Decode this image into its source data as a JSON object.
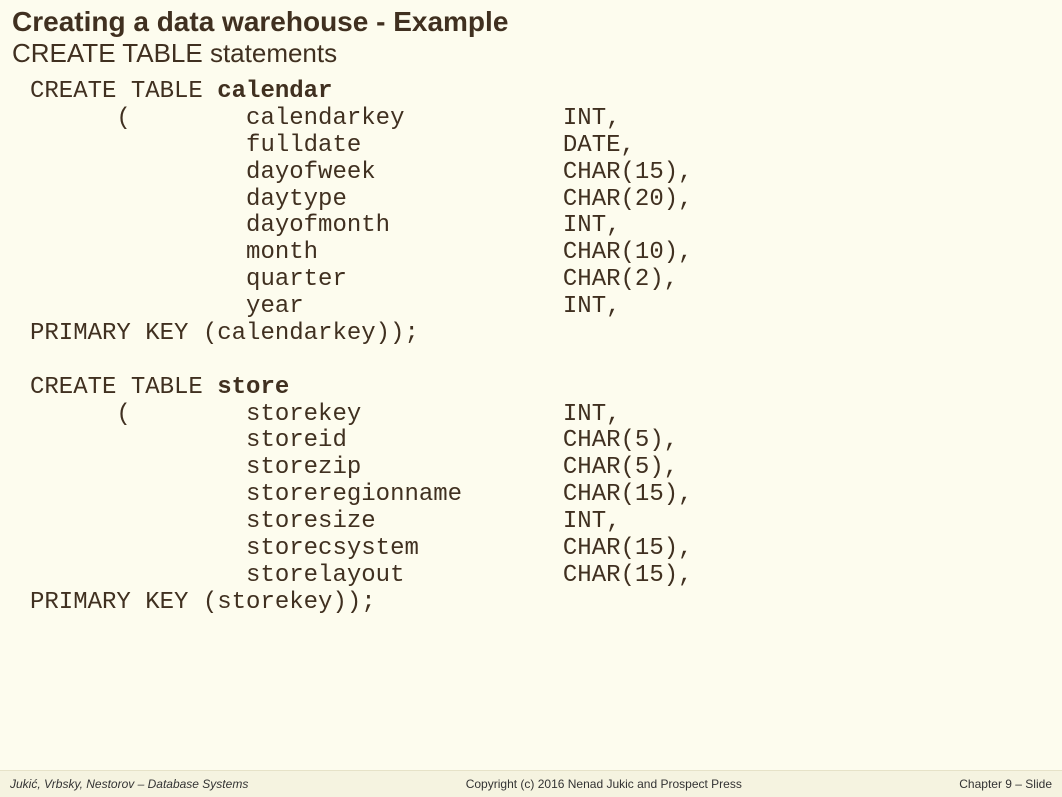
{
  "header": {
    "title": "Creating a data warehouse - Example",
    "subtitle": "CREATE TABLE statements"
  },
  "code": {
    "keyword_create_table": "CREATE TABLE",
    "table1": {
      "name": "calendar",
      "columns": [
        {
          "name": "calendarkey",
          "type": "INT,"
        },
        {
          "name": "fulldate",
          "type": "DATE,"
        },
        {
          "name": "dayofweek",
          "type": "CHAR(15),"
        },
        {
          "name": "daytype",
          "type": "CHAR(20),"
        },
        {
          "name": "dayofmonth",
          "type": "INT,"
        },
        {
          "name": "month",
          "type": "CHAR(10),"
        },
        {
          "name": "quarter",
          "type": "CHAR(2),"
        },
        {
          "name": "year",
          "type": "INT,"
        }
      ],
      "primary_key": "PRIMARY KEY (calendarkey));"
    },
    "table2": {
      "name": "store",
      "columns": [
        {
          "name": "storekey",
          "type": "INT,"
        },
        {
          "name": "storeid",
          "type": "CHAR(5),"
        },
        {
          "name": "storezip",
          "type": "CHAR(5),"
        },
        {
          "name": "storeregionname",
          "type": "CHAR(15),"
        },
        {
          "name": "storesize",
          "type": "INT,"
        },
        {
          "name": "storecsystem",
          "type": "CHAR(15),"
        },
        {
          "name": "storelayout",
          "type": "CHAR(15),"
        }
      ],
      "primary_key": "PRIMARY KEY (storekey));"
    }
  },
  "footer": {
    "left": "Jukić, Vrbsky, Nestorov – Database Systems",
    "center": "Copyright (c) 2016 Nenad Jukic and Prospect Press",
    "right": "Chapter 9 – Slide"
  },
  "style": {
    "colors": {
      "background": "#fdfcee",
      "text": "#403020",
      "footer_bg": "#f5f3e0",
      "footer_border": "#e6e2c8"
    },
    "fonts": {
      "title_size": 28,
      "subtitle_size": 26,
      "code_size": 24,
      "footer_size": 12
    },
    "layout": {
      "col_name_width": 22,
      "col_type_indent": 15,
      "paren_indent": 6
    }
  }
}
